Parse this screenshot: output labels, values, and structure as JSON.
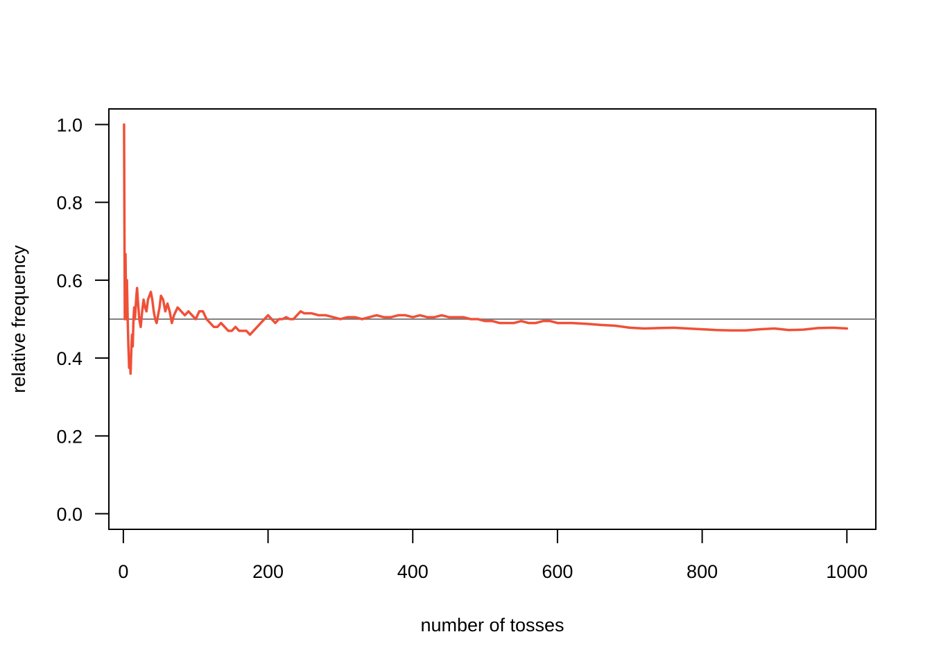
{
  "chart_data": {
    "type": "line",
    "xlabel": "number of tosses",
    "ylabel": "relative frequency",
    "xlim": [
      -20,
      1040
    ],
    "ylim": [
      -0.04,
      1.04
    ],
    "x_ticks": [
      0,
      200,
      400,
      600,
      800,
      1000
    ],
    "x_tick_labels": [
      "0",
      "200",
      "400",
      "600",
      "800",
      "1000"
    ],
    "y_ticks": [
      0.0,
      0.2,
      0.4,
      0.6,
      0.8,
      1.0
    ],
    "y_tick_labels": [
      "0.0",
      "0.2",
      "0.4",
      "0.6",
      "0.8",
      "1.0"
    ],
    "grid": false,
    "reference_line": {
      "y": 0.5,
      "color": "#808080"
    },
    "series": [
      {
        "color": "#F05038",
        "x": [
          1,
          2,
          3,
          4,
          5,
          6,
          7,
          8,
          9,
          10,
          11,
          12,
          13,
          14,
          15,
          16,
          17,
          18,
          19,
          20,
          22,
          24,
          26,
          28,
          30,
          32,
          34,
          36,
          38,
          40,
          42,
          44,
          46,
          48,
          50,
          52,
          55,
          58,
          61,
          64,
          67,
          70,
          75,
          80,
          85,
          90,
          95,
          100,
          105,
          110,
          115,
          120,
          125,
          130,
          135,
          140,
          145,
          150,
          155,
          160,
          165,
          170,
          175,
          180,
          185,
          190,
          195,
          200,
          205,
          210,
          215,
          220,
          225,
          230,
          235,
          240,
          245,
          250,
          260,
          270,
          280,
          290,
          300,
          310,
          320,
          330,
          340,
          350,
          360,
          370,
          380,
          390,
          400,
          410,
          420,
          430,
          440,
          450,
          460,
          470,
          480,
          490,
          500,
          510,
          520,
          530,
          540,
          550,
          560,
          570,
          580,
          590,
          600,
          620,
          640,
          660,
          680,
          700,
          720,
          740,
          760,
          780,
          800,
          820,
          840,
          860,
          880,
          900,
          920,
          940,
          960,
          980,
          1000
        ],
        "y": [
          1.0,
          0.5,
          0.667,
          0.5,
          0.6,
          0.5,
          0.43,
          0.375,
          0.4,
          0.36,
          0.42,
          0.46,
          0.43,
          0.5,
          0.53,
          0.5,
          0.53,
          0.56,
          0.58,
          0.55,
          0.5,
          0.48,
          0.52,
          0.55,
          0.53,
          0.52,
          0.55,
          0.56,
          0.57,
          0.55,
          0.52,
          0.5,
          0.49,
          0.51,
          0.53,
          0.56,
          0.55,
          0.52,
          0.54,
          0.52,
          0.49,
          0.51,
          0.53,
          0.52,
          0.51,
          0.52,
          0.51,
          0.5,
          0.52,
          0.52,
          0.5,
          0.49,
          0.48,
          0.48,
          0.49,
          0.48,
          0.47,
          0.47,
          0.48,
          0.47,
          0.47,
          0.47,
          0.46,
          0.47,
          0.48,
          0.49,
          0.5,
          0.51,
          0.5,
          0.49,
          0.5,
          0.5,
          0.505,
          0.5,
          0.5,
          0.51,
          0.52,
          0.515,
          0.515,
          0.51,
          0.51,
          0.505,
          0.5,
          0.505,
          0.505,
          0.5,
          0.505,
          0.51,
          0.505,
          0.505,
          0.51,
          0.51,
          0.505,
          0.51,
          0.505,
          0.505,
          0.51,
          0.505,
          0.505,
          0.505,
          0.5,
          0.5,
          0.495,
          0.495,
          0.49,
          0.49,
          0.49,
          0.495,
          0.49,
          0.49,
          0.495,
          0.495,
          0.49,
          0.49,
          0.488,
          0.485,
          0.483,
          0.478,
          0.476,
          0.477,
          0.478,
          0.476,
          0.474,
          0.472,
          0.471,
          0.471,
          0.474,
          0.476,
          0.472,
          0.473,
          0.477,
          0.478,
          0.476
        ]
      }
    ]
  }
}
